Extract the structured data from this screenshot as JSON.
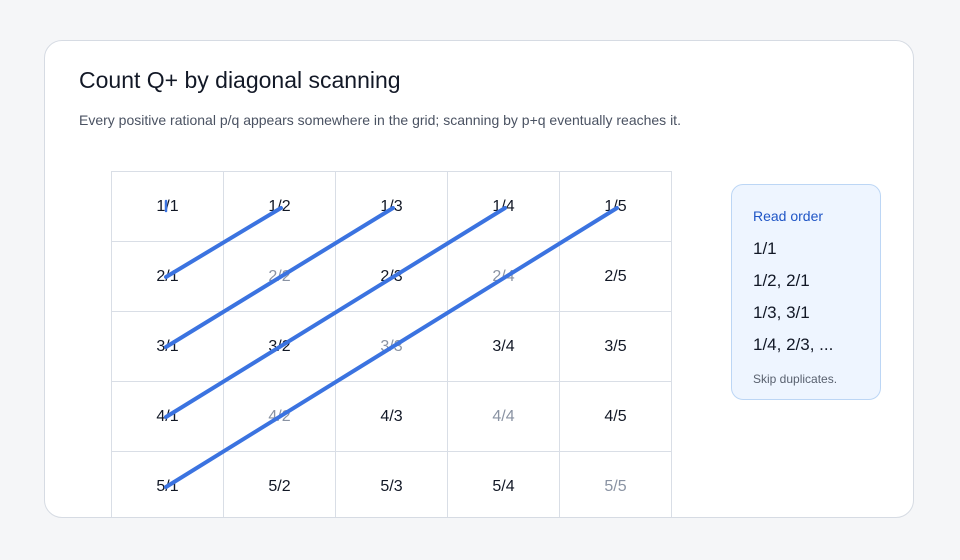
{
  "title": "Count Q+ by diagonal scanning",
  "subtitle": "Every positive rational p/q appears somewhere in the grid; scanning by p+q eventually reaches it.",
  "grid": {
    "rows": [
      [
        "1/1",
        "1/2",
        "1/3",
        "1/4",
        "1/5"
      ],
      [
        "2/1",
        "2/2",
        "2/3",
        "2/4",
        "2/5"
      ],
      [
        "3/1",
        "3/2",
        "3/3",
        "3/4",
        "3/5"
      ],
      [
        "4/1",
        "4/2",
        "4/3",
        "4/4",
        "4/5"
      ],
      [
        "5/1",
        "5/2",
        "5/3",
        "5/4",
        "5/5"
      ]
    ],
    "duplicates": [
      "2/2",
      "2/4",
      "3/3",
      "4/2",
      "4/4",
      "5/5"
    ],
    "scan_diagonals": [
      {
        "from": "2/1",
        "to": "1/2"
      },
      {
        "from": "3/1",
        "to": "1/3"
      },
      {
        "from": "4/1",
        "to": "1/4"
      },
      {
        "from": "5/1",
        "to": "1/5"
      }
    ],
    "path_color": "#3b73e0"
  },
  "panel": {
    "title": "Read order",
    "items": [
      "1/1",
      "1/2, 2/1",
      "1/3, 3/1",
      "1/4, 2/3, ..."
    ],
    "note": "Skip duplicates."
  }
}
